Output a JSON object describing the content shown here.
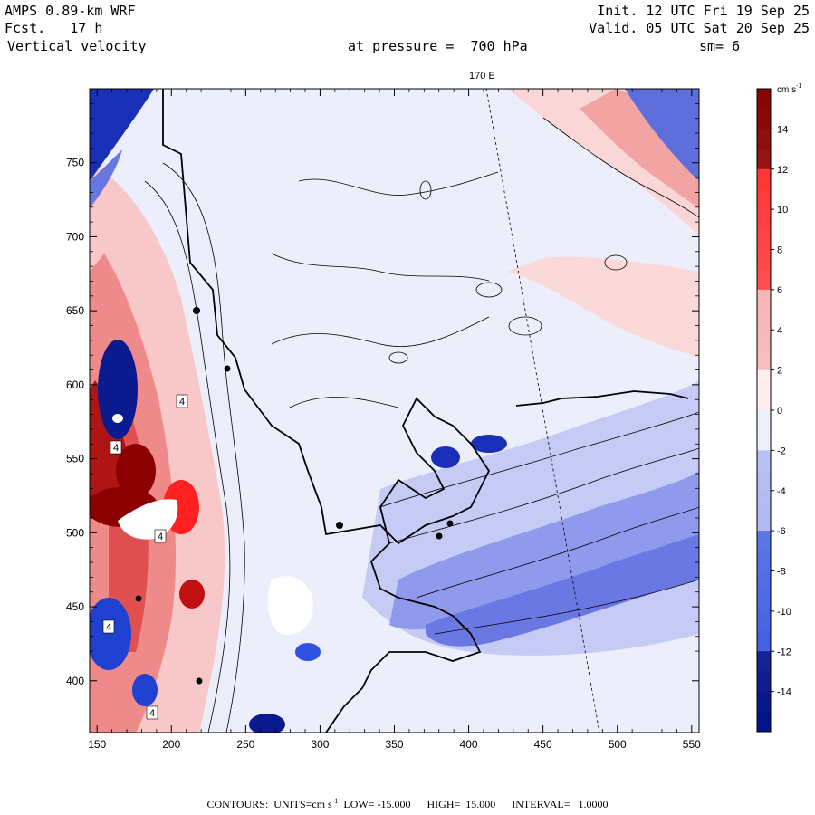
{
  "header": {
    "model": "AMPS 0.89-km WRF",
    "forecast": "Fcst.   17 h",
    "variable": "Vertical velocity",
    "init": "Init. 12 UTC Fri 19 Sep 25",
    "valid": "Valid. 05 UTC Sat 20 Sep 25",
    "pressure": "at pressure =  700 hPa",
    "smoothing": "sm= 6"
  },
  "map": {
    "meridian_label": "170 E",
    "x_ticks": [
      150,
      200,
      250,
      300,
      350,
      400,
      450,
      500,
      550
    ],
    "y_ticks": [
      400,
      450,
      500,
      550,
      600,
      650,
      700,
      750
    ],
    "x_range": [
      145,
      555
    ],
    "y_range": [
      365,
      800
    ],
    "contour_label": "4"
  },
  "colorbar": {
    "units": "cm s",
    "units_exp": "-1",
    "levels": [
      14,
      12,
      10,
      8,
      6,
      4,
      2,
      0,
      -2,
      -4,
      -6,
      -8,
      -10,
      -12,
      -14
    ],
    "range": [
      -16,
      16
    ],
    "colors": {
      "strong_up": "#8b0000",
      "up": "#ff2020",
      "weak_up": "#f4a0a0",
      "faint_up": "#fde4e4",
      "faint_down": "#e6e8fb",
      "weak_down": "#9aa4ec",
      "down": "#3050e0",
      "strong_down": "#00108a"
    }
  },
  "footer": {
    "contours": "CONTOURS:",
    "units": "UNITS=cm s",
    "units_exp": "-1",
    "low": "LOW= -15.000",
    "high": "HIGH=  15.000",
    "interval": "INTERVAL=   1.0000"
  }
}
